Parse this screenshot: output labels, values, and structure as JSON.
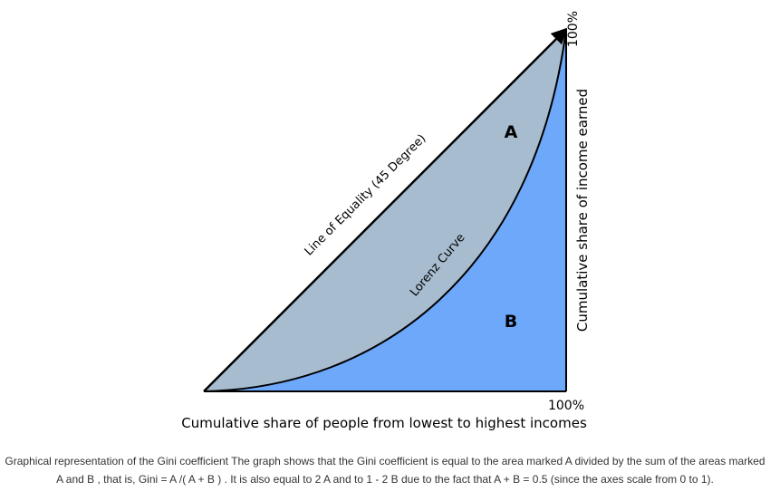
{
  "diagram": {
    "equality_line_label": "Line of Equality (45 Degree)",
    "lorenz_curve_label": "Lorenz Curve",
    "area_a_label": "A",
    "area_b_label": "B",
    "x_axis_end_label": "100%",
    "y_axis_end_label": "100%",
    "x_axis_title": "Cumulative share of people from lowest to highest incomes",
    "y_axis_title": "Cumulative share of income earned",
    "colors": {
      "area_a_fill": "#a7bccf",
      "area_b_fill": "#6ea8fb",
      "stroke": "#000000"
    }
  },
  "caption": {
    "text": "Graphical representation of the Gini coefficient The graph shows that the Gini coefficient is equal to the area marked A divided by the sum of the areas marked A and B , that is, Gini = A /( A + B ) . It is also equal to 2 A and to 1 - 2 B due to the fact that A + B = 0.5 (since the axes scale from 0 to 1)."
  }
}
